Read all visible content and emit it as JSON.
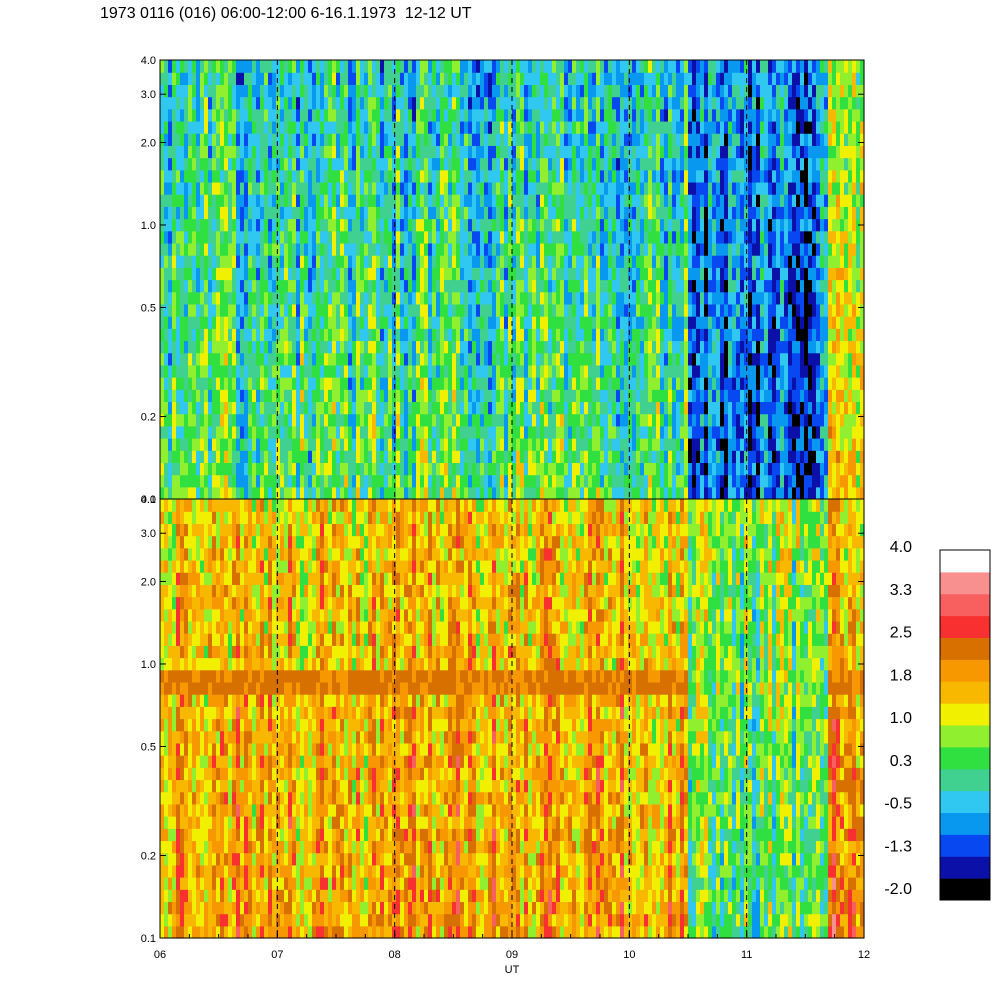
{
  "title": "1973 0116 (016) 06:00-12:00 6-16.1.1973  12-12 UT",
  "chart_data": {
    "type": "heatmap",
    "xlabel": "UT",
    "x_ticks": [
      "06",
      "07",
      "08",
      "09",
      "10",
      "11",
      "12"
    ],
    "x_range": [
      6,
      12
    ],
    "dashed_gridlines_at": [
      7,
      8,
      9,
      10,
      11
    ],
    "panels": [
      {
        "name": "upper",
        "y_scale": "log",
        "y_range": [
          0.1,
          4.0
        ],
        "y_ticks": [
          "0.1",
          "0.2",
          "0.5",
          "1.0",
          "2.0",
          "3.0",
          "4.0"
        ],
        "y_tick_values": [
          0.1,
          0.2,
          0.5,
          1.0,
          2.0,
          3.0,
          4.0
        ],
        "regions": [
          {
            "x": [
              6.0,
              10.5
            ],
            "level_low": 0.4,
            "level_high": -0.2
          },
          {
            "x": [
              10.5,
              11.7
            ],
            "level_low": -1.0,
            "level_high": -0.6
          },
          {
            "x": [
              11.7,
              12.0
            ],
            "level_low": 1.2,
            "level_high": 0.5
          }
        ]
      },
      {
        "name": "lower",
        "y_scale": "log",
        "y_range": [
          0.1,
          4.0
        ],
        "y_ticks": [
          "0.1",
          "0.2",
          "0.5",
          "1.0",
          "2.0",
          "3.0",
          "4.0"
        ],
        "y_tick_values": [
          0.1,
          0.2,
          0.5,
          1.0,
          2.0,
          3.0,
          4.0
        ],
        "band": {
          "y": [
            0.75,
            1.0
          ],
          "level": 2.2,
          "x_present": [
            [
              6.0,
              10.5
            ],
            [
              11.7,
              12.0
            ]
          ]
        },
        "regions": [
          {
            "x": [
              6.0,
              10.5
            ],
            "level_low": 1.9,
            "level_high": 1.5
          },
          {
            "x": [
              10.5,
              11.7
            ],
            "level_low": 0.3,
            "level_high": 0.8
          },
          {
            "x": [
              11.7,
              12.0
            ],
            "level_low": 2.5,
            "level_high": 1.6
          }
        ]
      }
    ],
    "colorbar": {
      "labels": [
        "4.0",
        "3.3",
        "2.5",
        "1.8",
        "1.0",
        "0.3",
        "-0.5",
        "-1.3",
        "-2.0"
      ],
      "colors": [
        "#000000",
        "#0a10a8",
        "#0848f0",
        "#0898f0",
        "#30c8f0",
        "#40d090",
        "#30e040",
        "#90f030",
        "#f0f000",
        "#f8b800",
        "#f89800",
        "#d87000",
        "#f83030",
        "#f86060",
        "#f89090",
        "#ffffff"
      ]
    }
  }
}
